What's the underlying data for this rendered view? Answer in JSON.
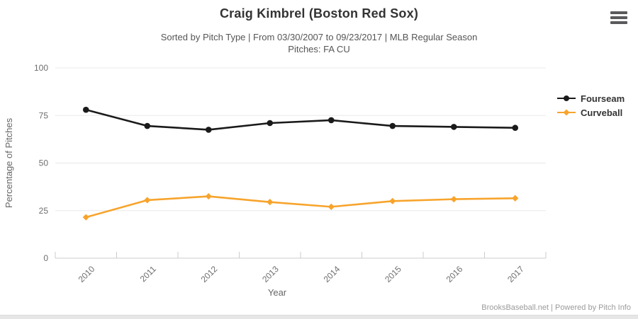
{
  "header": {
    "title": "Craig Kimbrel (Boston Red Sox)",
    "subtitle_line1": "Sorted by Pitch Type | From 03/30/2007 to 09/23/2017 | MLB Regular Season",
    "subtitle_line2": "Pitches: FA CU"
  },
  "chart_data": {
    "type": "line",
    "x": [
      "2010",
      "2011",
      "2012",
      "2013",
      "2014",
      "2015",
      "2016",
      "2017"
    ],
    "series": [
      {
        "name": "Fourseam",
        "color": "#1a1a1a",
        "marker": "circle",
        "values": [
          78,
          69.5,
          67.5,
          71,
          72.5,
          69.5,
          69,
          68.5
        ]
      },
      {
        "name": "Curveball",
        "color": "#f7a42c",
        "marker": "diamond",
        "values": [
          21.5,
          30.5,
          32.5,
          29.5,
          27,
          30,
          31,
          31.5
        ]
      }
    ],
    "xlabel": "Year",
    "ylabel": "Percentage of Pitches",
    "ylim": [
      0,
      100
    ],
    "yticks": [
      0,
      25,
      50,
      75,
      100
    ],
    "grid": true,
    "legend_position": "right"
  },
  "footer": {
    "credit": "BrooksBaseball.net | Powered by Pitch Info"
  },
  "colors": {
    "grid": "#e8e8e8",
    "axis": "#cccccc",
    "tick_label": "#6e6e6e",
    "axis_title": "#666666",
    "title_text": "#333333",
    "subtitle_text": "#555555",
    "footer_text": "#9b9b9b"
  }
}
